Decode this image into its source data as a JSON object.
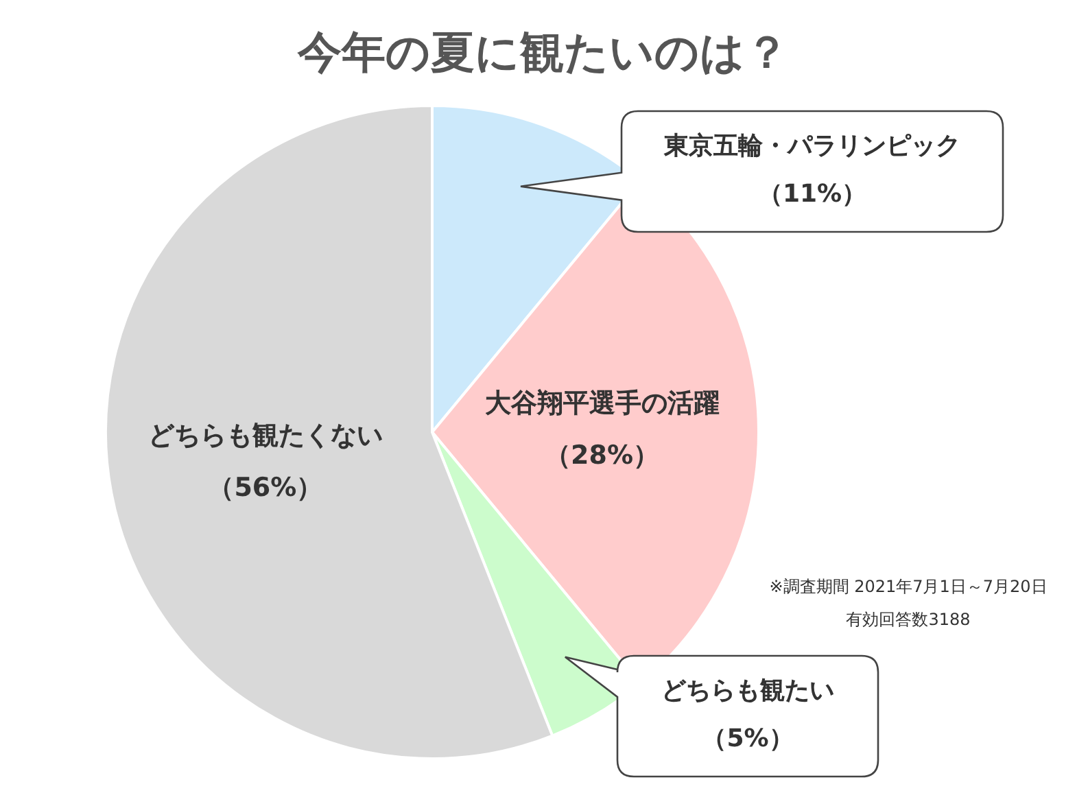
{
  "chart_data": {
    "type": "pie",
    "title": "今年の夏に観たいのは？",
    "categories": [
      "東京五輪・パラリンピック",
      "大谷翔平選手の活躍",
      "どちらも観たい",
      "どちらも観たくない"
    ],
    "values": [
      11,
      28,
      5,
      56
    ],
    "colors": [
      "#cce9fb",
      "#ffcccc",
      "#ccfccc",
      "#d9d9d9"
    ],
    "value_labels": [
      "（11%）",
      "（28%）",
      "（5%）",
      "（56%）"
    ],
    "annotations": [
      "※調査期間 2021年7月1日～7月20日",
      "有効回答数3188"
    ]
  }
}
